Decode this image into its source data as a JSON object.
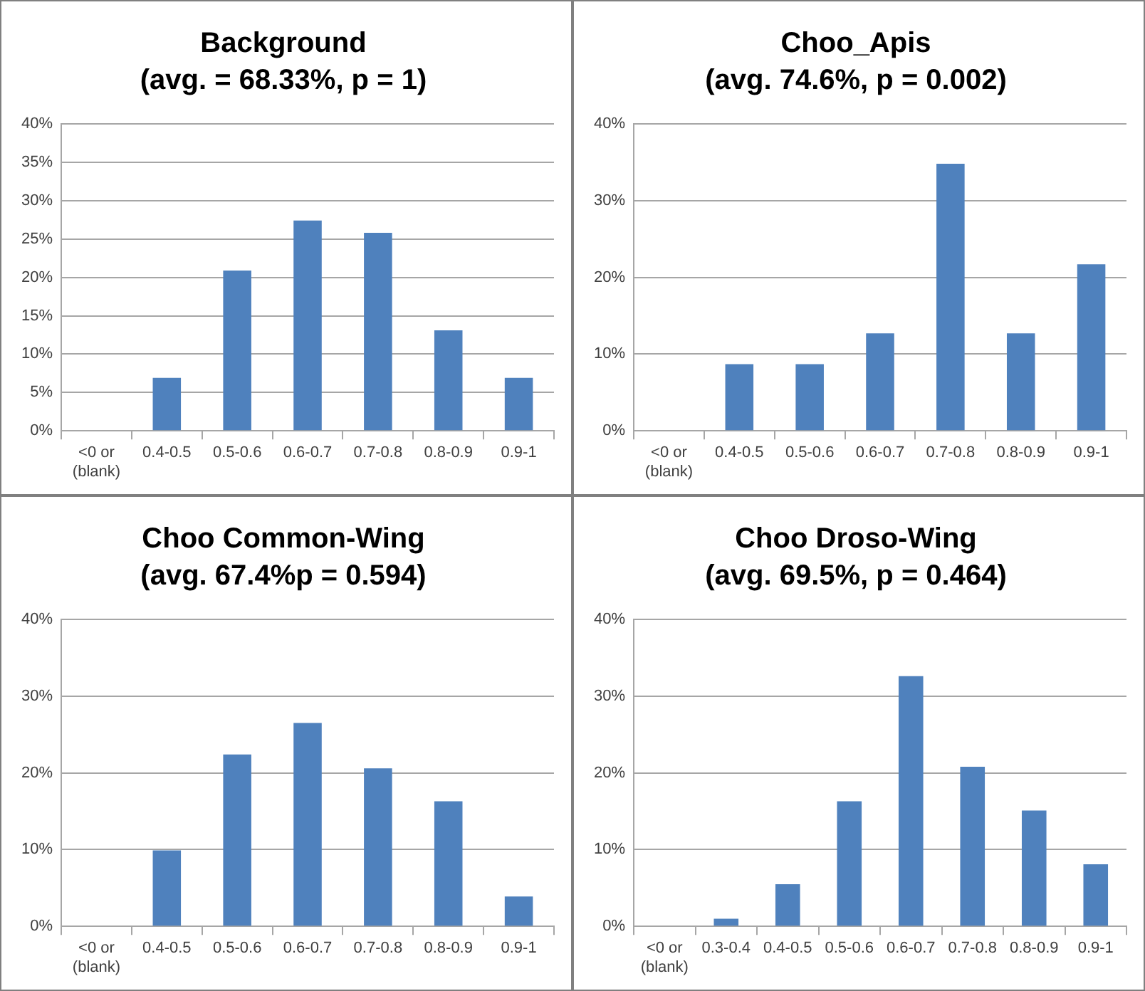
{
  "chart_data": [
    {
      "type": "bar",
      "title": "Background",
      "subtitle": "(avg. = 68.33%, p = 1)",
      "categories": [
        "<0 or (blank)",
        "0.4-0.5",
        "0.5-0.6",
        "0.6-0.7",
        "0.7-0.8",
        "0.8-0.9",
        "0.9-1"
      ],
      "values": [
        0,
        6.9,
        20.9,
        27.4,
        25.8,
        13.1,
        6.9
      ],
      "color": "#4f81bd",
      "ylim": [
        0,
        40
      ],
      "yticks": [
        {
          "value": 0,
          "label": "0%"
        },
        {
          "value": 5,
          "label": "5%"
        },
        {
          "value": 10,
          "label": "10%"
        },
        {
          "value": 15,
          "label": "15%"
        },
        {
          "value": 20,
          "label": "20%"
        },
        {
          "value": 25,
          "label": "25%"
        },
        {
          "value": 30,
          "label": "30%"
        },
        {
          "value": 35,
          "label": "35%"
        },
        {
          "value": 40,
          "label": "40%"
        }
      ],
      "grid": "y",
      "legend": false
    },
    {
      "type": "bar",
      "title": "Choo_Apis",
      "subtitle": "(avg. 74.6%, p = 0.002)",
      "categories": [
        "<0 or (blank)",
        "0.4-0.5",
        "0.5-0.6",
        "0.6-0.7",
        "0.7-0.8",
        "0.8-0.9",
        "0.9-1"
      ],
      "values": [
        0,
        8.7,
        8.7,
        12.7,
        34.8,
        12.7,
        21.7
      ],
      "color": "#4f81bd",
      "ylim": [
        0,
        40
      ],
      "yticks": [
        {
          "value": 0,
          "label": "0%"
        },
        {
          "value": 10,
          "label": "10%"
        },
        {
          "value": 20,
          "label": "20%"
        },
        {
          "value": 30,
          "label": "30%"
        },
        {
          "value": 40,
          "label": "40%"
        }
      ],
      "grid": "y",
      "legend": false
    },
    {
      "type": "bar",
      "title": "Choo Common-Wing",
      "subtitle": "(avg. 67.4%p = 0.594)",
      "categories": [
        "<0 or (blank)",
        "0.4-0.5",
        "0.5-0.6",
        "0.6-0.7",
        "0.7-0.8",
        "0.8-0.9",
        "0.9-1"
      ],
      "values": [
        0,
        9.9,
        22.4,
        26.5,
        20.6,
        16.3,
        3.9
      ],
      "color": "#4f81bd",
      "ylim": [
        0,
        40
      ],
      "yticks": [
        {
          "value": 0,
          "label": "0%"
        },
        {
          "value": 10,
          "label": "10%"
        },
        {
          "value": 20,
          "label": "20%"
        },
        {
          "value": 30,
          "label": "30%"
        },
        {
          "value": 40,
          "label": "40%"
        }
      ],
      "grid": "y",
      "legend": false
    },
    {
      "type": "bar",
      "title": "Choo Droso-Wing",
      "subtitle": "(avg. 69.5%, p = 0.464)",
      "categories": [
        "<0 or (blank)",
        "0.3-0.4",
        "0.4-0.5",
        "0.5-0.6",
        "0.6-0.7",
        "0.7-0.8",
        "0.8-0.9",
        "0.9-1"
      ],
      "values": [
        0,
        1.0,
        5.5,
        16.3,
        32.6,
        20.8,
        15.1,
        8.1
      ],
      "color": "#4f81bd",
      "ylim": [
        0,
        40
      ],
      "yticks": [
        {
          "value": 0,
          "label": "0%"
        },
        {
          "value": 10,
          "label": "10%"
        },
        {
          "value": 20,
          "label": "20%"
        },
        {
          "value": 30,
          "label": "30%"
        },
        {
          "value": 40,
          "label": "40%"
        }
      ],
      "grid": "y",
      "legend": false
    }
  ]
}
